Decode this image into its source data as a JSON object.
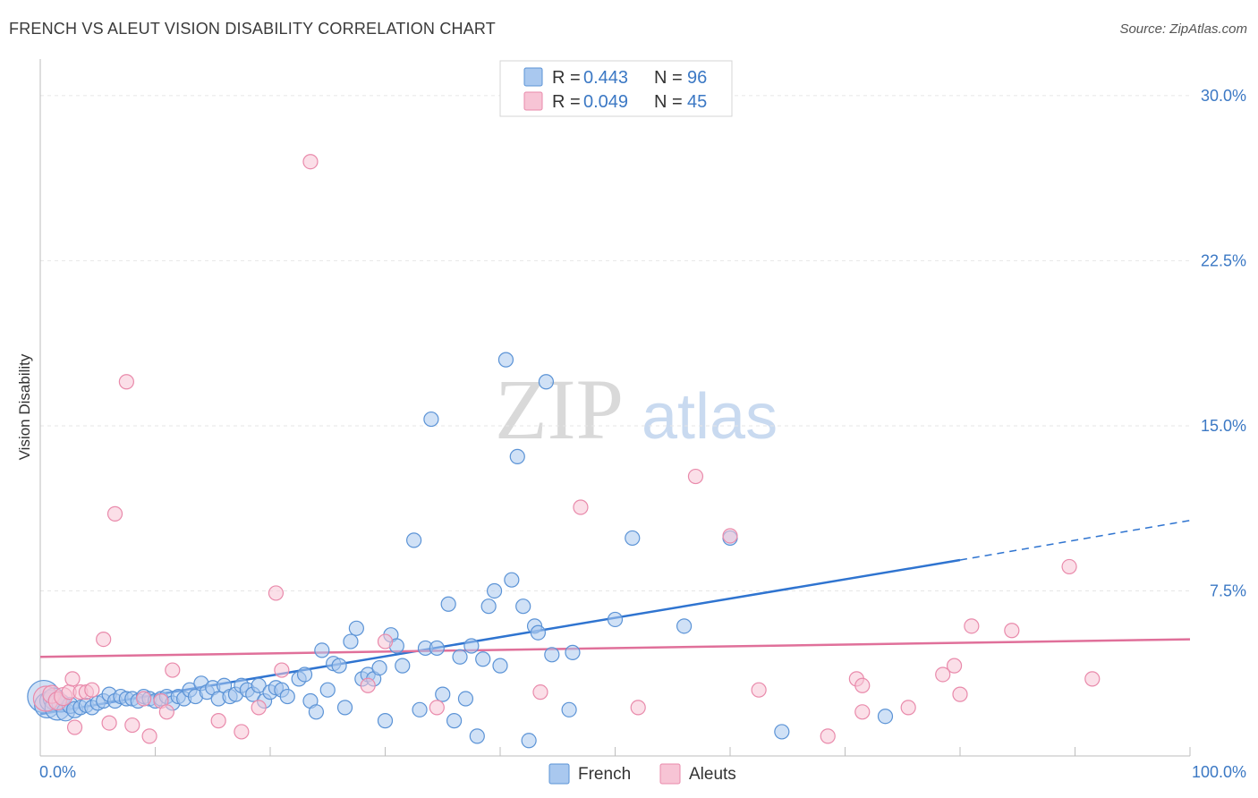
{
  "header": {
    "title": "FRENCH VS ALEUT VISION DISABILITY CORRELATION CHART",
    "source": "Source: ZipAtlas.com"
  },
  "watermark": {
    "zip": "ZIP",
    "atlas": "atlas"
  },
  "legend": {
    "rows": [
      {
        "r_label": "R =",
        "r_value": "0.443",
        "n_label": "N =",
        "n_value": "96",
        "color": "#7aaee8"
      },
      {
        "r_label": "R =",
        "r_value": "0.049",
        "n_label": "N =",
        "n_value": "45",
        "color": "#f4a6c0"
      }
    ]
  },
  "bottom_legend": {
    "french": "French",
    "aleuts": "Aleuts"
  },
  "colors": {
    "french_fill": "#a9c8ef",
    "french_stroke": "#5b93d6",
    "french_line": "#2f74d0",
    "aleut_fill": "#f7c4d5",
    "aleut_stroke": "#e98aab",
    "aleut_line": "#e0709a",
    "tick": "#3b78c4",
    "grid": "#e6e6e6"
  },
  "chart_data": {
    "type": "scatter",
    "title": "FRENCH VS ALEUT VISION DISABILITY CORRELATION CHART",
    "xlabel": "",
    "ylabel": "Vision Disability",
    "xlim": [
      0,
      100
    ],
    "ylim": [
      0,
      31.5
    ],
    "y_ticks": [
      7.5,
      15.0,
      22.5,
      30.0
    ],
    "y_tick_labels": [
      "7.5%",
      "15.0%",
      "22.5%",
      "30.0%"
    ],
    "x_tick_labels": [
      "0.0%",
      "100.0%"
    ],
    "grid": true,
    "legend_position": "top-center",
    "series": [
      {
        "name": "French",
        "r": 0.443,
        "n": 96,
        "trend": {
          "x0": 0,
          "y0": 1.9,
          "x1": 80,
          "y1": 8.9,
          "dash_to_x": 100,
          "dash_to_y": 10.7
        },
        "points": [
          [
            0.3,
            2.7,
            18
          ],
          [
            0.6,
            2.3,
            14
          ],
          [
            0.9,
            2.5,
            12
          ],
          [
            1.2,
            2.6,
            12
          ],
          [
            1.5,
            2.2,
            14
          ],
          [
            1.8,
            2.4,
            10
          ],
          [
            2.2,
            2.0,
            10
          ],
          [
            2.6,
            2.3,
            9
          ],
          [
            3.0,
            2.1,
            9
          ],
          [
            3.5,
            2.2,
            8
          ],
          [
            4.0,
            2.3,
            8
          ],
          [
            4.5,
            2.2,
            8
          ],
          [
            5.0,
            2.4,
            8
          ],
          [
            5.5,
            2.5,
            8
          ],
          [
            6.0,
            2.8,
            8
          ],
          [
            6.5,
            2.5,
            8
          ],
          [
            7.0,
            2.7,
            8
          ],
          [
            7.5,
            2.6,
            8
          ],
          [
            8.0,
            2.6,
            8
          ],
          [
            8.5,
            2.5,
            8
          ],
          [
            9.0,
            2.7,
            8
          ],
          [
            9.5,
            2.6,
            8
          ],
          [
            10.0,
            2.5,
            8
          ],
          [
            10.5,
            2.6,
            8
          ],
          [
            11.0,
            2.7,
            8
          ],
          [
            11.5,
            2.4,
            8
          ],
          [
            12.0,
            2.7,
            8
          ],
          [
            12.5,
            2.6,
            8
          ],
          [
            13.0,
            3.0,
            8
          ],
          [
            13.5,
            2.7,
            8
          ],
          [
            14.0,
            3.3,
            8
          ],
          [
            14.5,
            2.9,
            8
          ],
          [
            15.0,
            3.1,
            8
          ],
          [
            15.5,
            2.6,
            8
          ],
          [
            16.0,
            3.2,
            8
          ],
          [
            16.5,
            2.7,
            8
          ],
          [
            17.0,
            2.8,
            8
          ],
          [
            17.5,
            3.2,
            8
          ],
          [
            18.0,
            3.0,
            8
          ],
          [
            18.5,
            2.8,
            8
          ],
          [
            19.0,
            3.2,
            8
          ],
          [
            19.5,
            2.5,
            8
          ],
          [
            20.0,
            2.9,
            8
          ],
          [
            20.5,
            3.1,
            8
          ],
          [
            21.0,
            3.0,
            8
          ],
          [
            21.5,
            2.7,
            8
          ],
          [
            22.5,
            3.5,
            8
          ],
          [
            23.0,
            3.7,
            8
          ],
          [
            23.5,
            2.5,
            8
          ],
          [
            24.0,
            2.0,
            8
          ],
          [
            24.5,
            4.8,
            8
          ],
          [
            25.0,
            3.0,
            8
          ],
          [
            25.5,
            4.2,
            8
          ],
          [
            26.0,
            4.1,
            8
          ],
          [
            26.5,
            2.2,
            8
          ],
          [
            27.0,
            5.2,
            8
          ],
          [
            27.5,
            5.8,
            8
          ],
          [
            28.0,
            3.5,
            8
          ],
          [
            28.5,
            3.7,
            8
          ],
          [
            29.0,
            3.5,
            8
          ],
          [
            29.5,
            4.0,
            8
          ],
          [
            30.0,
            1.6,
            8
          ],
          [
            30.5,
            5.5,
            8
          ],
          [
            31.0,
            5.0,
            8
          ],
          [
            31.5,
            4.1,
            8
          ],
          [
            32.5,
            9.8,
            8
          ],
          [
            33.0,
            2.1,
            8
          ],
          [
            33.5,
            4.9,
            8
          ],
          [
            34.0,
            15.3,
            8
          ],
          [
            34.5,
            4.9,
            8
          ],
          [
            35.0,
            2.8,
            8
          ],
          [
            35.5,
            6.9,
            8
          ],
          [
            36.0,
            1.6,
            8
          ],
          [
            36.5,
            4.5,
            8
          ],
          [
            37.0,
            2.6,
            8
          ],
          [
            37.5,
            5.0,
            8
          ],
          [
            38.0,
            0.9,
            8
          ],
          [
            38.5,
            4.4,
            8
          ],
          [
            39.0,
            6.8,
            8
          ],
          [
            39.5,
            7.5,
            8
          ],
          [
            40.0,
            4.1,
            8
          ],
          [
            40.5,
            18.0,
            8
          ],
          [
            41.0,
            8.0,
            8
          ],
          [
            41.5,
            13.6,
            8
          ],
          [
            42.0,
            6.8,
            8
          ],
          [
            42.5,
            0.7,
            8
          ],
          [
            43.0,
            5.9,
            8
          ],
          [
            43.3,
            5.6,
            8
          ],
          [
            44.0,
            17.0,
            8
          ],
          [
            44.5,
            4.6,
            8
          ],
          [
            46.0,
            2.1,
            8
          ],
          [
            46.3,
            4.7,
            8
          ],
          [
            50.0,
            6.2,
            8
          ],
          [
            51.5,
            9.9,
            8
          ],
          [
            56.0,
            5.9,
            8
          ],
          [
            60.0,
            9.9,
            8
          ],
          [
            64.5,
            1.1,
            8
          ],
          [
            73.5,
            1.8,
            8
          ]
        ]
      },
      {
        "name": "Aleuts",
        "r": 0.049,
        "n": 45,
        "trend": {
          "x0": 0,
          "y0": 4.5,
          "x1": 100,
          "y1": 5.3
        },
        "points": [
          [
            0.5,
            2.6,
            14
          ],
          [
            1.0,
            2.8,
            10
          ],
          [
            1.5,
            2.5,
            10
          ],
          [
            2.0,
            2.7,
            10
          ],
          [
            2.5,
            2.9,
            8
          ],
          [
            3.0,
            1.3,
            8
          ],
          [
            3.5,
            2.9,
            8
          ],
          [
            2.8,
            3.5,
            8
          ],
          [
            4.0,
            2.9,
            8
          ],
          [
            4.5,
            3.0,
            8
          ],
          [
            5.5,
            5.3,
            8
          ],
          [
            6.0,
            1.5,
            8
          ],
          [
            6.5,
            11.0,
            8
          ],
          [
            7.5,
            17.0,
            8
          ],
          [
            8.0,
            1.4,
            8
          ],
          [
            9.0,
            2.6,
            8
          ],
          [
            9.5,
            0.9,
            8
          ],
          [
            10.5,
            2.5,
            8
          ],
          [
            11.0,
            2.0,
            8
          ],
          [
            11.5,
            3.9,
            8
          ],
          [
            15.5,
            1.6,
            8
          ],
          [
            17.5,
            1.1,
            8
          ],
          [
            19.0,
            2.2,
            8
          ],
          [
            20.5,
            7.4,
            8
          ],
          [
            21.0,
            3.9,
            8
          ],
          [
            23.5,
            27.0,
            8
          ],
          [
            28.5,
            3.2,
            8
          ],
          [
            30.0,
            5.2,
            8
          ],
          [
            34.5,
            2.2,
            8
          ],
          [
            43.5,
            2.9,
            8
          ],
          [
            47.0,
            11.3,
            8
          ],
          [
            52.0,
            2.2,
            8
          ],
          [
            57.0,
            12.7,
            8
          ],
          [
            60.0,
            10.0,
            8
          ],
          [
            62.5,
            3.0,
            8
          ],
          [
            68.5,
            0.9,
            8
          ],
          [
            71.0,
            3.5,
            8
          ],
          [
            71.5,
            3.2,
            8
          ],
          [
            71.5,
            2.0,
            8
          ],
          [
            75.5,
            2.2,
            8
          ],
          [
            78.5,
            3.7,
            8
          ],
          [
            79.5,
            4.1,
            8
          ],
          [
            80.0,
            2.8,
            8
          ],
          [
            81.0,
            5.9,
            8
          ],
          [
            84.5,
            5.7,
            8
          ],
          [
            89.5,
            8.6,
            8
          ],
          [
            91.5,
            3.5,
            8
          ]
        ]
      }
    ]
  }
}
